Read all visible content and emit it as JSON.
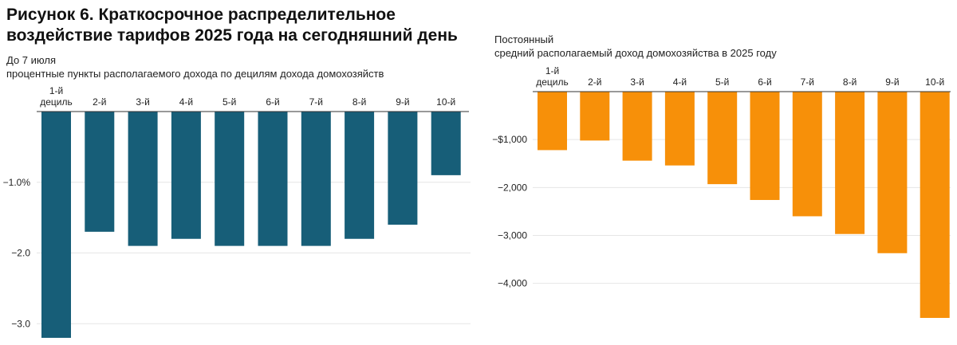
{
  "title": "Рисунок 6. Краткосрочное распределительное воздействие тарифов 2025 года на сегодняшний день",
  "left_panel": {
    "subtitle_line1": "До 7 июля",
    "subtitle_line2": "процентные пункты располагаемого дохода по децилям дохода домохозяйств"
  },
  "right_panel": {
    "subtitle_line1": "Постоянный",
    "subtitle_line2": "средний располагаемый доход домохозяйства в 2025 году"
  },
  "chart_data": [
    {
      "type": "bar",
      "title": "До 7 июля",
      "ylabel": "процентные пункты располагаемого дохода по децилям дохода домохозяйств",
      "categories": [
        "1-й дециль",
        "2-й",
        "3-й",
        "4-й",
        "5-й",
        "6-й",
        "7-й",
        "8-й",
        "9-й",
        "10-й"
      ],
      "category_lines": [
        [
          "1-й",
          "дециль"
        ],
        [
          "2-й"
        ],
        [
          "3-й"
        ],
        [
          "4-й"
        ],
        [
          "5-й"
        ],
        [
          "6-й"
        ],
        [
          "7-й"
        ],
        [
          "8-й"
        ],
        [
          "9-й"
        ],
        [
          "10-й"
        ]
      ],
      "values": [
        -3.2,
        -1.7,
        -1.9,
        -1.8,
        -1.9,
        -1.9,
        -1.9,
        -1.8,
        -1.6,
        -0.9
      ],
      "yticks": [
        -1.0,
        -2.0,
        -3.0
      ],
      "ytick_labels": [
        "−1.0%",
        "−2.0",
        "−3.0"
      ],
      "ylim": [
        -3.2,
        0
      ],
      "color": "#175E78",
      "grid": true
    },
    {
      "type": "bar",
      "title": "Постоянный",
      "ylabel": "средний располагаемый доход домохозяйства в 2025 году",
      "categories": [
        "1-й дециль",
        "2-й",
        "3-й",
        "4-й",
        "5-й",
        "6-й",
        "7-й",
        "8-й",
        "9-й",
        "10-й"
      ],
      "category_lines": [
        [
          "1-й",
          "дециль"
        ],
        [
          "2-й"
        ],
        [
          "3-й"
        ],
        [
          "4-й"
        ],
        [
          "5-й"
        ],
        [
          "6-й"
        ],
        [
          "7-й"
        ],
        [
          "8-й"
        ],
        [
          "9-й"
        ],
        [
          "10-й"
        ]
      ],
      "values": [
        -1220,
        -1020,
        -1440,
        -1540,
        -1930,
        -2260,
        -2600,
        -2970,
        -3370,
        -4720
      ],
      "yticks": [
        -1000,
        -2000,
        -3000,
        -4000
      ],
      "ytick_labels": [
        "−$1,000",
        "−2,000",
        "−3,000",
        "−4,000"
      ],
      "ylim": [
        -4720,
        0
      ],
      "color": "#F79009",
      "grid": true
    }
  ]
}
